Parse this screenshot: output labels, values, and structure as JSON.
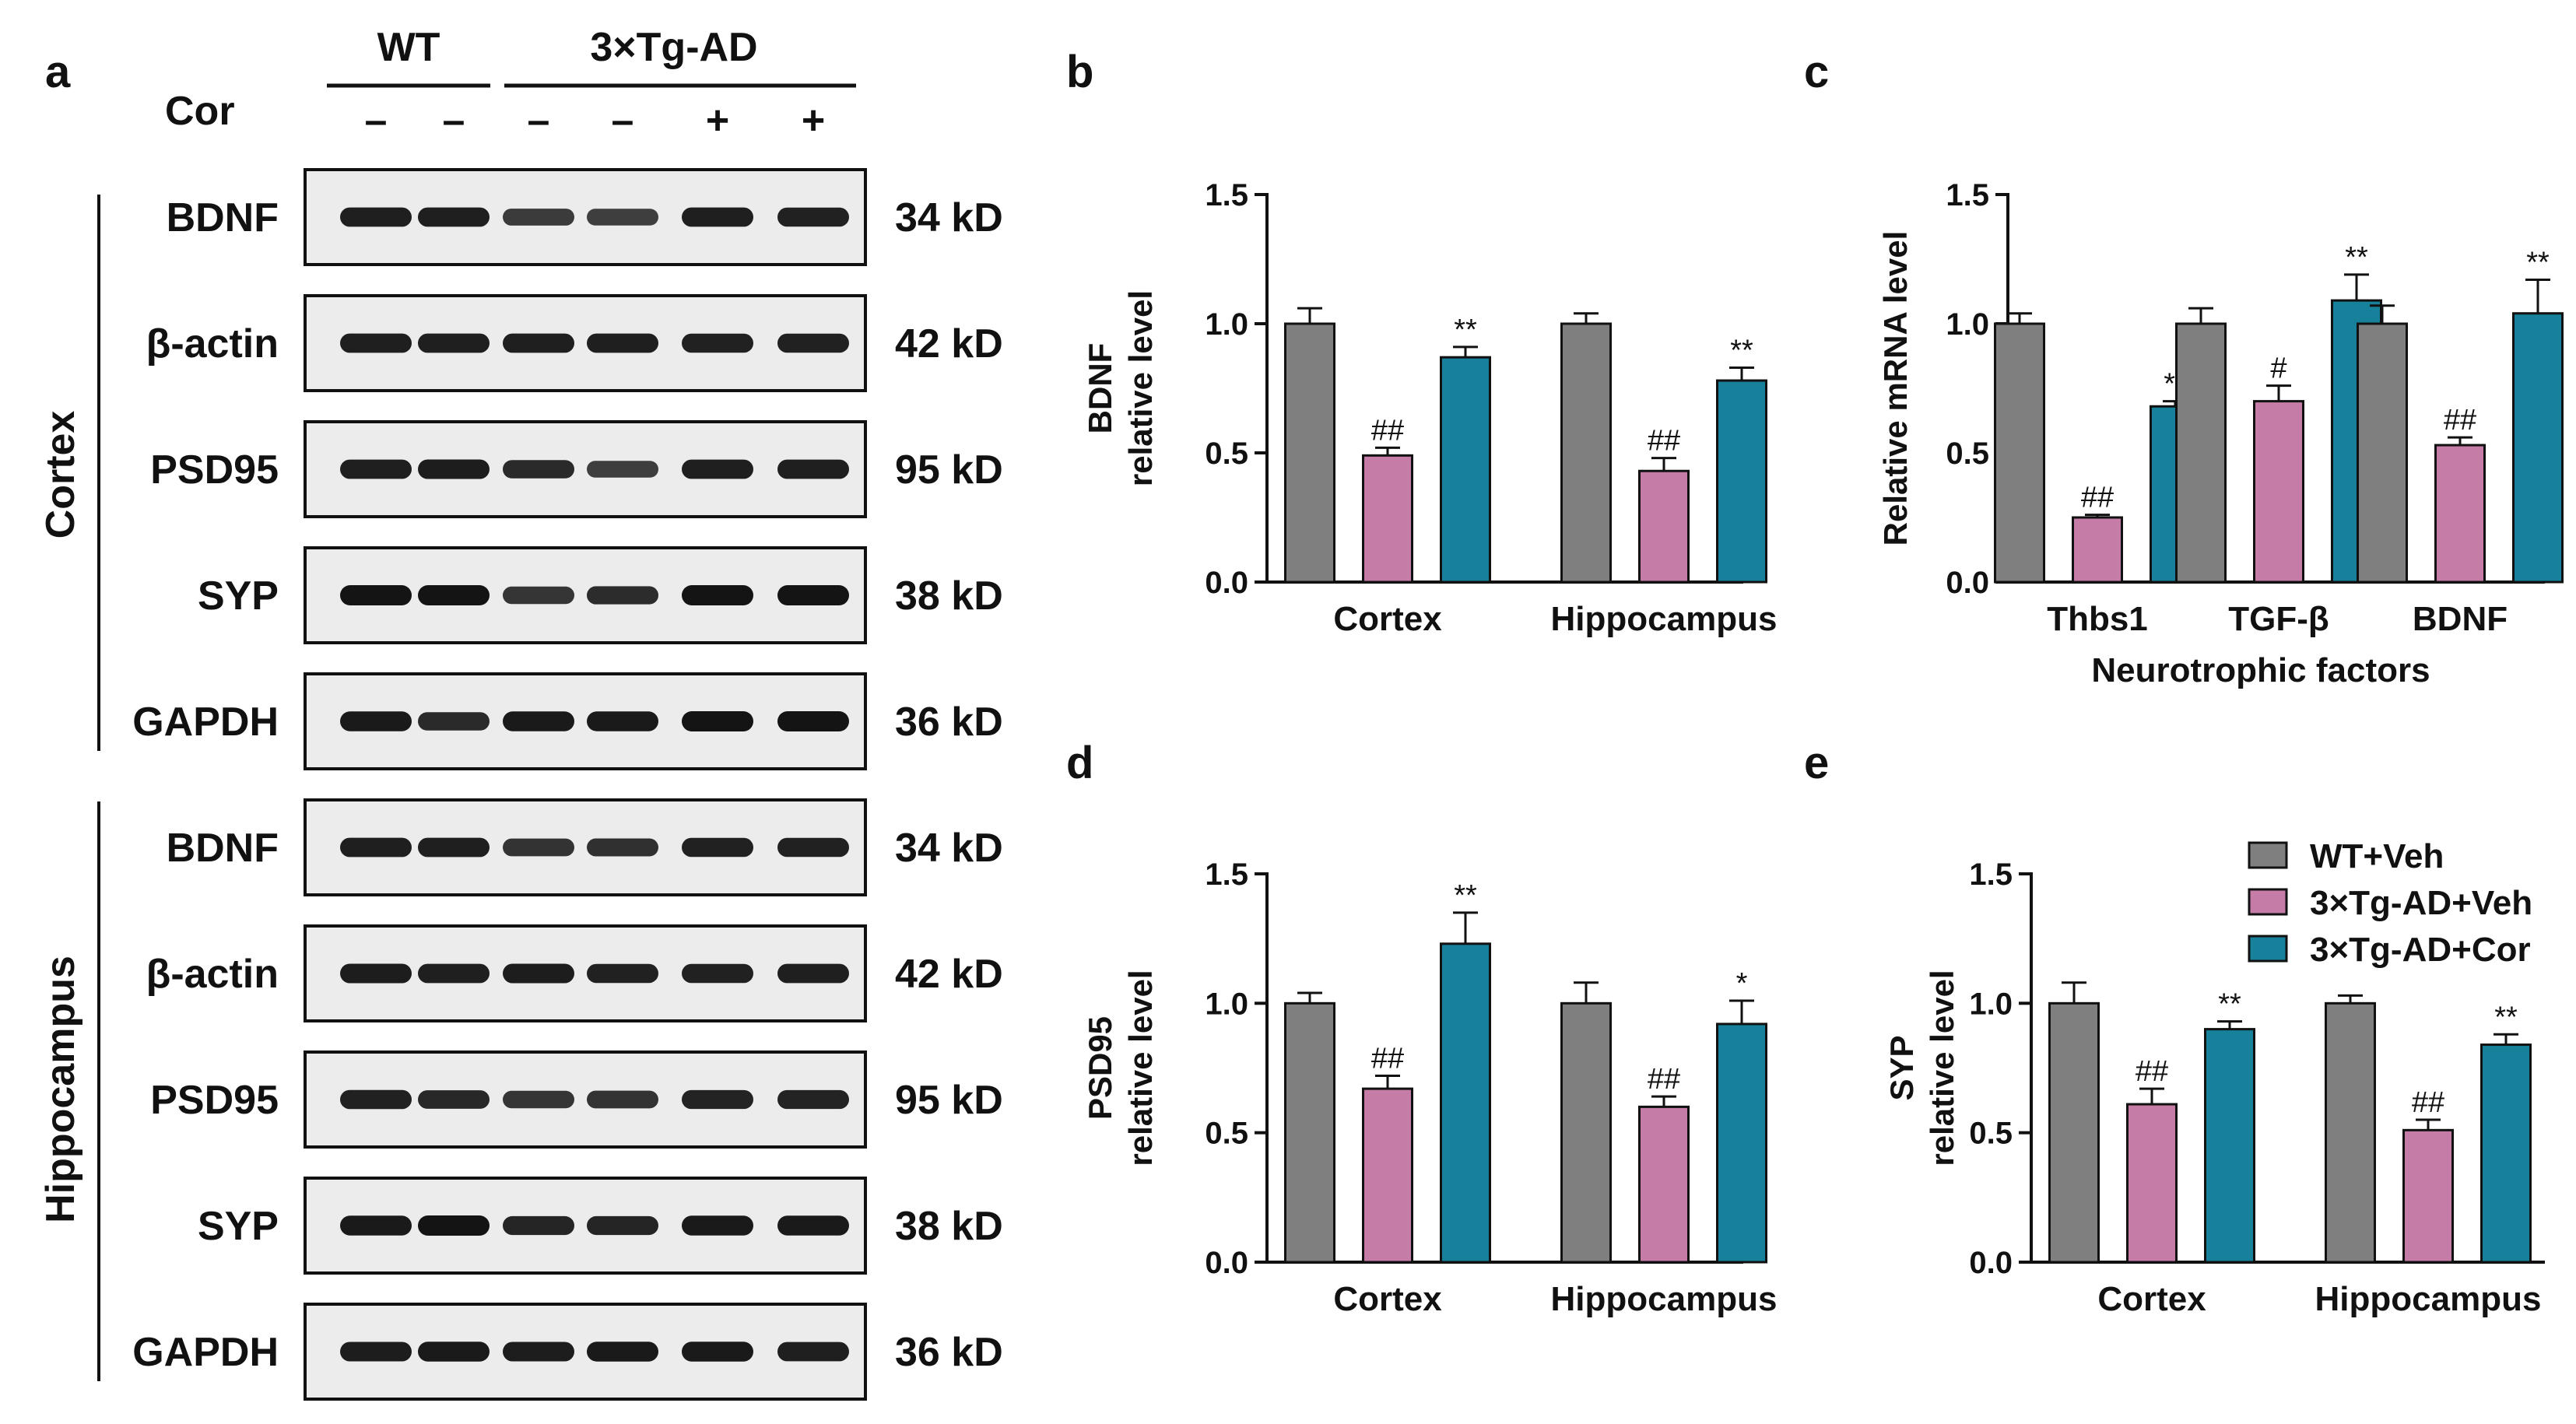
{
  "panels": {
    "a": "a",
    "b": "b",
    "c": "c",
    "d": "d",
    "e": "e"
  },
  "colors": {
    "wt_veh": "#7f7f7f",
    "ad_veh": "#c57ca6",
    "ad_cor": "#17819b"
  },
  "blot": {
    "group_wt": "WT",
    "group_ad": "3×Tg-AD",
    "treatment_label": "Cor",
    "treatment_signs": [
      "–",
      "–",
      "–",
      "–",
      "+",
      "+"
    ],
    "regions": [
      "Cortex",
      "Hippocampus"
    ],
    "rows": [
      {
        "protein": "BDNF",
        "size": "34 kD",
        "intensity": [
          0.9,
          0.9,
          0.65,
          0.62,
          0.9,
          0.88
        ]
      },
      {
        "protein": "β-actin",
        "size": "42 kD",
        "intensity": [
          0.9,
          0.9,
          0.9,
          0.9,
          0.88,
          0.88
        ]
      },
      {
        "protein": "PSD95",
        "size": "95 kD",
        "intensity": [
          0.9,
          0.92,
          0.8,
          0.62,
          0.9,
          0.9
        ]
      },
      {
        "protein": "SYP",
        "size": "38 kD",
        "intensity": [
          1.0,
          1.0,
          0.7,
          0.78,
          1.0,
          1.0
        ]
      },
      {
        "protein": "GAPDH",
        "size": "36 kD",
        "intensity": [
          0.95,
          0.8,
          0.95,
          0.95,
          1.0,
          1.0
        ]
      },
      {
        "protein": "BDNF",
        "size": "34 kD",
        "intensity": [
          0.9,
          0.9,
          0.72,
          0.75,
          0.88,
          0.88
        ]
      },
      {
        "protein": "β-actin",
        "size": "42 kD",
        "intensity": [
          0.92,
          0.9,
          0.92,
          0.88,
          0.88,
          0.9
        ]
      },
      {
        "protein": "PSD95",
        "size": "95 kD",
        "intensity": [
          0.88,
          0.82,
          0.7,
          0.72,
          0.86,
          0.86
        ]
      },
      {
        "protein": "SYP",
        "size": "38 kD",
        "intensity": [
          0.95,
          1.0,
          0.85,
          0.85,
          0.95,
          0.95
        ]
      },
      {
        "protein": "GAPDH",
        "size": "36 kD",
        "intensity": [
          0.92,
          0.95,
          0.92,
          0.95,
          0.95,
          0.9
        ]
      }
    ]
  },
  "legend": [
    "WT+Veh",
    "3×Tg-AD+Veh",
    "3×Tg-AD+Cor"
  ],
  "chart_data": [
    {
      "panel": "b",
      "type": "bar",
      "ylabel": [
        "BDNF",
        "relative level"
      ],
      "xlabel": "",
      "ylim": [
        0,
        1.5
      ],
      "yticks": [
        "0.0",
        "0.5",
        "1.0",
        "1.5"
      ],
      "categories": [
        "Cortex",
        "Hippocampus"
      ],
      "series": [
        {
          "name": "WT+Veh",
          "values": [
            1.0,
            1.0
          ],
          "errors": [
            0.06,
            0.04
          ],
          "marks": [
            "",
            ""
          ]
        },
        {
          "name": "3×Tg-AD+Veh",
          "values": [
            0.49,
            0.43
          ],
          "errors": [
            0.03,
            0.05
          ],
          "marks": [
            "##",
            "##"
          ]
        },
        {
          "name": "3×Tg-AD+Cor",
          "values": [
            0.87,
            0.78
          ],
          "errors": [
            0.04,
            0.05
          ],
          "marks": [
            "**",
            "**"
          ]
        }
      ]
    },
    {
      "panel": "c",
      "type": "bar",
      "ylabel": [
        "Relative mRNA level"
      ],
      "xlabel": "Neurotrophic factors",
      "ylim": [
        0,
        1.5
      ],
      "yticks": [
        "0.0",
        "0.5",
        "1.0",
        "1.5"
      ],
      "categories": [
        "Thbs1",
        "TGF-β",
        "BDNF"
      ],
      "series": [
        {
          "name": "WT+Veh",
          "values": [
            1.0,
            1.0,
            1.0
          ],
          "errors": [
            0.04,
            0.06,
            0.07
          ],
          "marks": [
            "",
            "",
            ""
          ]
        },
        {
          "name": "3×Tg-AD+Veh",
          "values": [
            0.25,
            0.7,
            0.53
          ],
          "errors": [
            0.01,
            0.06,
            0.03
          ],
          "marks": [
            "##",
            "#",
            "##"
          ]
        },
        {
          "name": "3×Tg-AD+Cor",
          "values": [
            0.68,
            1.09,
            1.04
          ],
          "errors": [
            0.02,
            0.1,
            0.13
          ],
          "marks": [
            "**",
            "**",
            "**"
          ]
        }
      ]
    },
    {
      "panel": "d",
      "type": "bar",
      "ylabel": [
        "PSD95",
        "relative level"
      ],
      "xlabel": "",
      "ylim": [
        0,
        1.5
      ],
      "yticks": [
        "0.0",
        "0.5",
        "1.0",
        "1.5"
      ],
      "categories": [
        "Cortex",
        "Hippocampus"
      ],
      "series": [
        {
          "name": "WT+Veh",
          "values": [
            1.0,
            1.0
          ],
          "errors": [
            0.04,
            0.08
          ],
          "marks": [
            "",
            ""
          ]
        },
        {
          "name": "3×Tg-AD+Veh",
          "values": [
            0.67,
            0.6
          ],
          "errors": [
            0.05,
            0.04
          ],
          "marks": [
            "##",
            "##"
          ]
        },
        {
          "name": "3×Tg-AD+Cor",
          "values": [
            1.23,
            0.92
          ],
          "errors": [
            0.12,
            0.09
          ],
          "marks": [
            "**",
            "*"
          ]
        }
      ]
    },
    {
      "panel": "e",
      "type": "bar",
      "ylabel": [
        "SYP",
        "relative level"
      ],
      "xlabel": "",
      "ylim": [
        0,
        1.5
      ],
      "yticks": [
        "0.0",
        "0.5",
        "1.0",
        "1.5"
      ],
      "categories": [
        "Cortex",
        "Hippocampus"
      ],
      "series": [
        {
          "name": "WT+Veh",
          "values": [
            1.0,
            1.0
          ],
          "errors": [
            0.08,
            0.03
          ],
          "marks": [
            "",
            ""
          ]
        },
        {
          "name": "3×Tg-AD+Veh",
          "values": [
            0.61,
            0.51
          ],
          "errors": [
            0.06,
            0.04
          ],
          "marks": [
            "##",
            "##"
          ]
        },
        {
          "name": "3×Tg-AD+Cor",
          "values": [
            0.9,
            0.84
          ],
          "errors": [
            0.03,
            0.04
          ],
          "marks": [
            "**",
            "**"
          ]
        }
      ]
    }
  ]
}
